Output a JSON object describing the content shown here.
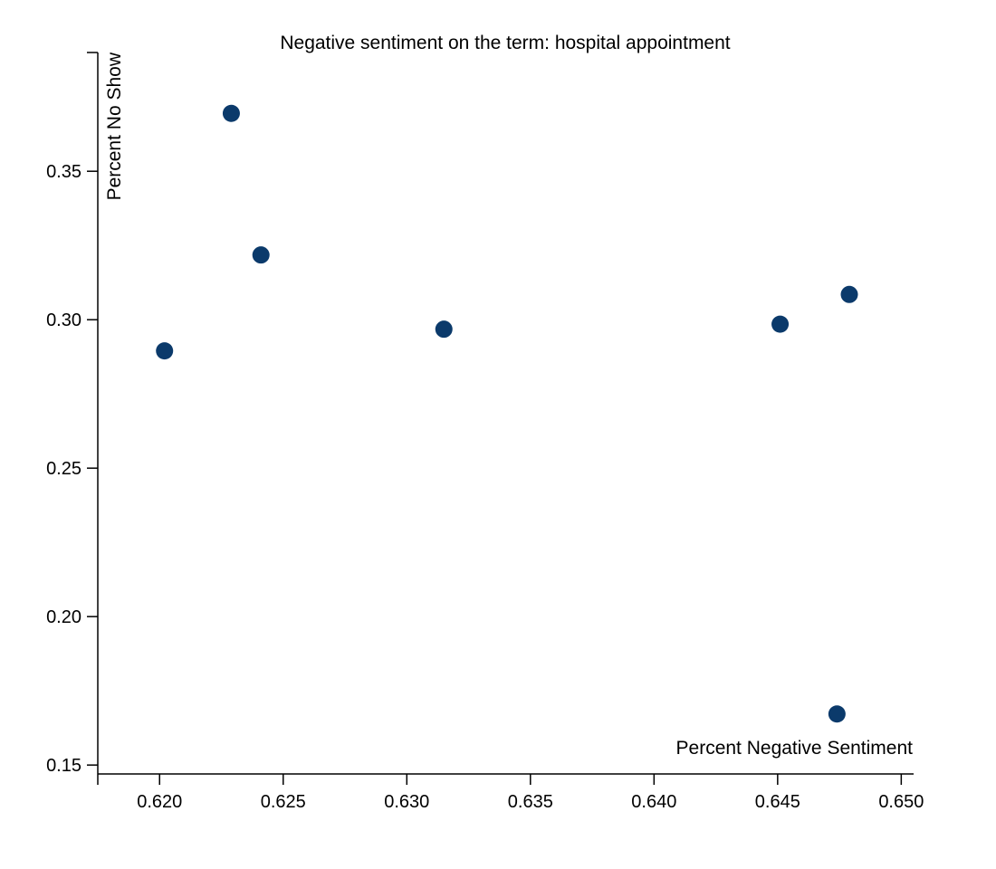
{
  "chart_data": {
    "type": "scatter",
    "title": "Negative sentiment on the term: hospital appointment",
    "xlabel": "Percent Negative Sentiment",
    "ylabel": "Percent No Show",
    "xlim": [
      0.6175,
      0.6505
    ],
    "ylim": [
      0.147,
      0.39
    ],
    "x_ticks": [
      "0.620",
      "0.625",
      "0.630",
      "0.635",
      "0.640",
      "0.645",
      "0.650"
    ],
    "y_ticks": [
      "0.15",
      "0.20",
      "0.25",
      "0.30",
      "0.35"
    ],
    "grid": false,
    "marker_color": "#0b3a6b",
    "points": [
      {
        "x": 0.6202,
        "y": 0.2895
      },
      {
        "x": 0.6229,
        "y": 0.3695
      },
      {
        "x": 0.6241,
        "y": 0.3218
      },
      {
        "x": 0.6315,
        "y": 0.2968
      },
      {
        "x": 0.6451,
        "y": 0.2985
      },
      {
        "x": 0.6479,
        "y": 0.3085
      },
      {
        "x": 0.6474,
        "y": 0.1672
      }
    ]
  }
}
